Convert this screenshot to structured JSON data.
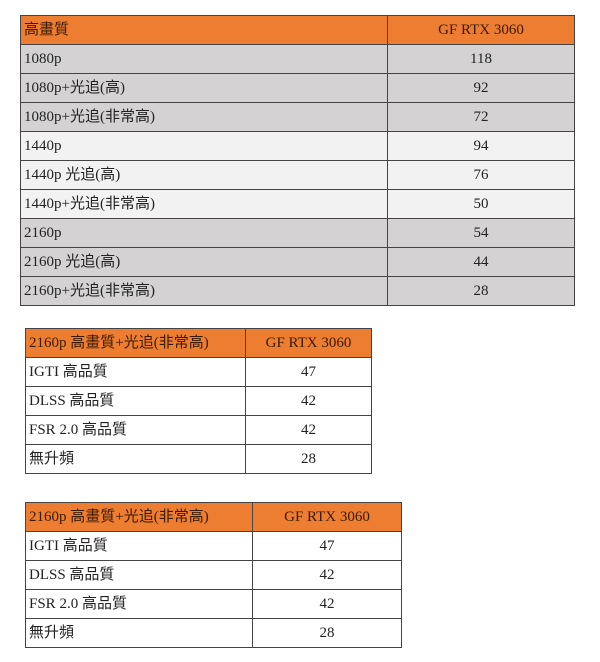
{
  "table1": {
    "header": [
      "高畫質",
      "GF RTX 3060"
    ],
    "rows": [
      [
        "1080p",
        "118"
      ],
      [
        "1080p+光追(高)",
        "92"
      ],
      [
        "1080p+光追(非常高)",
        "72"
      ],
      [
        "1440p",
        "94"
      ],
      [
        "1440p 光追(高)",
        "76"
      ],
      [
        "1440p+光追(非常高)",
        "50"
      ],
      [
        "2160p",
        "54"
      ],
      [
        "2160p 光追(高)",
        "44"
      ],
      [
        "2160p+光追(非常高)",
        "28"
      ]
    ]
  },
  "table2": {
    "header": [
      "2160p 高畫質+光追(非常高)",
      "GF RTX 3060"
    ],
    "rows": [
      [
        "IGTI  高品質",
        "47"
      ],
      [
        "DLSS  高品質",
        "42"
      ],
      [
        "FSR 2.0  高品質",
        "42"
      ],
      [
        "無升頻",
        "28"
      ]
    ]
  },
  "table3": {
    "header": [
      "2160p 高畫質+光追(非常高)",
      "GF RTX 3060"
    ],
    "rows": [
      [
        "IGTI  高品質",
        "47"
      ],
      [
        "DLSS  高品質",
        "42"
      ],
      [
        "FSR 2.0  高品質",
        "42"
      ],
      [
        "無升頻",
        "28"
      ]
    ]
  },
  "colors": {
    "header": "#ed7d31",
    "row_dark": "#d4d2d2",
    "row_light": "#f2f2f2"
  }
}
